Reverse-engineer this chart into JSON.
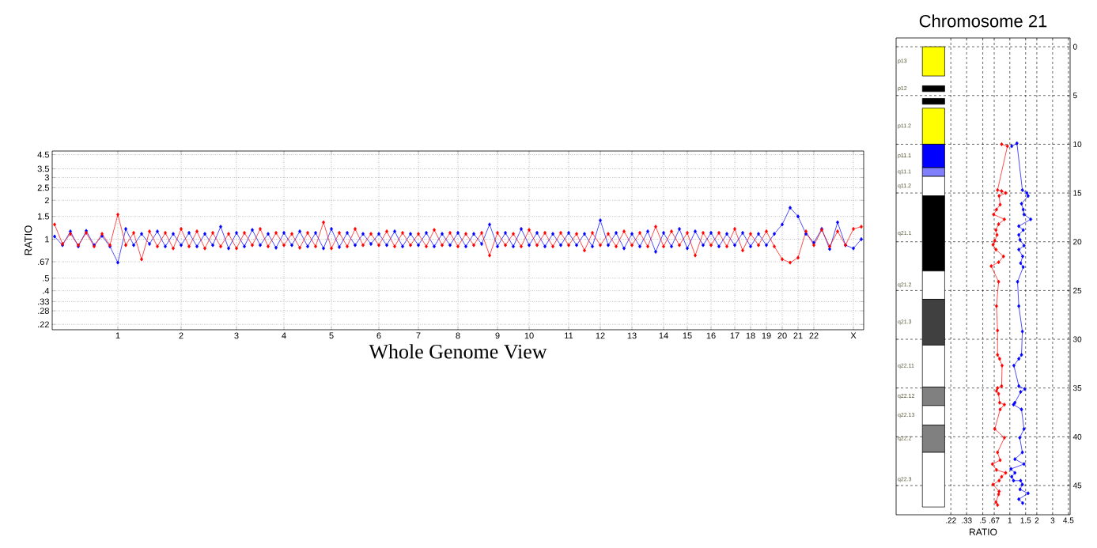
{
  "chart_data": [
    {
      "type": "line",
      "xlabel": "Whole Genome View",
      "ylabel": "RATIO",
      "log": "y",
      "grid": true,
      "marker": "diamond",
      "line_style": "solid",
      "ylim": [
        0.2,
        4.8
      ],
      "categories": [
        null,
        null,
        null,
        null,
        null,
        null,
        null,
        null,
        "1",
        null,
        null,
        null,
        null,
        null,
        null,
        null,
        "2",
        null,
        null,
        null,
        null,
        null,
        null,
        "3",
        null,
        null,
        null,
        null,
        null,
        "4",
        null,
        null,
        null,
        null,
        null,
        "5",
        null,
        null,
        null,
        null,
        null,
        "6",
        null,
        null,
        null,
        null,
        "7",
        null,
        null,
        null,
        null,
        "8",
        null,
        null,
        null,
        null,
        "9",
        null,
        null,
        null,
        "10",
        null,
        null,
        null,
        null,
        "11",
        null,
        null,
        null,
        "12",
        null,
        null,
        null,
        "13",
        null,
        null,
        null,
        "14",
        null,
        null,
        "15",
        null,
        null,
        "16",
        null,
        null,
        "17",
        null,
        "18",
        null,
        "19",
        null,
        "20",
        null,
        "21",
        null,
        "22",
        null,
        null,
        null,
        null,
        "X",
        null
      ],
      "yticks": [
        {
          "value": 0.22,
          "label": ".22"
        },
        {
          "value": 0.28,
          "label": ".28"
        },
        {
          "value": 0.33,
          "label": ".33"
        },
        {
          "value": 0.4,
          "label": ".4"
        },
        {
          "value": 0.5,
          "label": ".5"
        },
        {
          "value": 0.67,
          "label": ".67"
        },
        1,
        1.5,
        2,
        2.5,
        3,
        3.5,
        4.5
      ],
      "series": [
        {
          "color": "#0000ff",
          "values": [
            1.05,
            0.9,
            1.15,
            0.88,
            1.16,
            0.9,
            1.06,
            0.88,
            0.66,
            1.2,
            0.9,
            1.1,
            0.92,
            1.15,
            0.88,
            1.1,
            0.9,
            1.12,
            0.88,
            1.1,
            0.9,
            1.25,
            0.85,
            1.12,
            0.88,
            1.18,
            0.9,
            1.1,
            0.86,
            1.12,
            0.9,
            1.15,
            0.88,
            1.12,
            0.85,
            1.2,
            0.87,
            1.12,
            0.9,
            1.1,
            0.92,
            1.1,
            0.9,
            1.15,
            0.88,
            1.1,
            0.9,
            1.12,
            0.88,
            1.1,
            0.9,
            1.12,
            0.88,
            1.1,
            0.92,
            1.3,
            0.88,
            1.12,
            0.88,
            1.2,
            0.9,
            1.12,
            0.88,
            1.1,
            0.9,
            1.12,
            0.9,
            1.1,
            0.88,
            1.4,
            0.9,
            1.12,
            0.85,
            1.1,
            0.88,
            1.15,
            0.8,
            1.12,
            0.88,
            1.2,
            0.85,
            1.15,
            0.9,
            1.12,
            0.88,
            1.1,
            0.9,
            1.12,
            0.88,
            1.1,
            0.9,
            1.1,
            1.3,
            1.75,
            1.5,
            1.1,
            0.94,
            1.2,
            0.84,
            1.35,
            0.9,
            0.85,
            1.0
          ]
        },
        {
          "color": "#ff0000",
          "values": [
            1.3,
            0.92,
            1.1,
            0.9,
            1.12,
            0.88,
            1.1,
            0.9,
            1.55,
            0.9,
            1.12,
            0.7,
            1.15,
            0.88,
            1.12,
            0.85,
            1.2,
            0.88,
            1.15,
            0.85,
            1.12,
            0.88,
            1.1,
            0.85,
            1.12,
            0.9,
            1.2,
            0.88,
            1.12,
            0.9,
            1.1,
            0.86,
            1.12,
            0.88,
            1.35,
            0.85,
            1.12,
            0.88,
            1.2,
            0.9,
            1.1,
            0.9,
            1.15,
            0.88,
            1.12,
            0.9,
            1.1,
            0.88,
            1.18,
            0.9,
            1.12,
            0.88,
            1.1,
            0.9,
            1.12,
            0.75,
            1.12,
            0.9,
            1.1,
            0.88,
            1.18,
            0.9,
            1.12,
            0.88,
            1.12,
            0.9,
            1.1,
            0.82,
            1.12,
            0.9,
            1.1,
            0.88,
            1.15,
            0.9,
            1.12,
            0.88,
            1.25,
            0.88,
            1.15,
            0.9,
            1.12,
            0.75,
            1.12,
            0.9,
            1.12,
            0.88,
            1.2,
            0.82,
            1.1,
            0.9,
            1.15,
            0.88,
            0.7,
            0.66,
            0.72,
            1.15,
            0.9,
            1.18,
            0.88,
            1.15,
            0.9,
            1.2,
            1.25
          ]
        }
      ]
    },
    {
      "type": "line",
      "title": "Chromosome 21",
      "xlabel": "RATIO",
      "log": "x",
      "grid": true,
      "marker": "diamond",
      "line_style": "solid",
      "xlim": [
        0.054,
        4.7
      ],
      "ylim": [
        48,
        -0.9
      ],
      "xticks": [
        {
          "value": 0.22,
          "label": ".22"
        },
        {
          "value": 0.33,
          "label": ".33"
        },
        {
          "value": 0.5,
          "label": ".5"
        },
        {
          "value": 0.67,
          "label": ".67"
        },
        1,
        1.5,
        2,
        3,
        4.5
      ],
      "yticks": [
        0,
        5,
        10,
        15,
        20,
        25,
        30,
        35,
        40,
        45
      ],
      "bands": [
        {
          "axis": "y",
          "from": 0,
          "to": 3.0,
          "label": "p13",
          "color": "#ffff00"
        },
        {
          "axis": "y",
          "from": 4.0,
          "to": 4.6,
          "label": "p12",
          "color": "#000000"
        },
        {
          "axis": "y",
          "from": 5.3,
          "to": 5.9,
          "color": "#000000"
        },
        {
          "axis": "y",
          "from": 6.3,
          "to": 10.0,
          "label": "p11.2",
          "color": "#ffff00"
        },
        {
          "axis": "y",
          "from": 10.0,
          "to": 12.4,
          "label": "p11.1",
          "color": "#0000ff"
        },
        {
          "axis": "y",
          "from": 12.4,
          "to": 13.3,
          "label": "q11.1",
          "color": "#8080ff"
        },
        {
          "axis": "y",
          "from": 13.3,
          "to": 15.3,
          "label": "q11.2",
          "color": "#ffffff"
        },
        {
          "axis": "y",
          "from": 15.3,
          "to": 23.0,
          "label": "q21.1",
          "color": "#000000"
        },
        {
          "axis": "y",
          "from": 23.0,
          "to": 25.9,
          "label": "q21.2",
          "color": "#ffffff"
        },
        {
          "axis": "y",
          "from": 25.9,
          "to": 30.6,
          "label": "q21.3",
          "color": "#404040"
        },
        {
          "axis": "y",
          "from": 30.6,
          "to": 34.9,
          "label": "q22.11",
          "color": "#ffffff"
        },
        {
          "axis": "y",
          "from": 34.9,
          "to": 36.8,
          "label": "q22.12",
          "color": "#808080"
        },
        {
          "axis": "y",
          "from": 36.8,
          "to": 38.8,
          "label": "q22.13",
          "color": "#ffffff"
        },
        {
          "axis": "y",
          "from": 38.8,
          "to": 41.6,
          "label": "q22.2",
          "color": "#808080"
        },
        {
          "axis": "y",
          "from": 41.6,
          "to": 47.2,
          "label": "q22.3",
          "color": "#ffffff"
        }
      ],
      "series": [
        {
          "color": "#ff0000",
          "x": [
            0.81,
            0.94,
            0.73,
            0.81,
            0.9,
            0.76,
            0.78,
            0.71,
            0.66,
            0.87,
            0.75,
            0.7,
            0.72,
            0.68,
            0.65,
            0.7,
            0.85,
            0.75,
            0.62,
            0.75,
            0.71,
            0.73,
            0.73,
            0.77,
            0.82,
            0.81,
            0.73,
            0.71,
            0.75,
            0.77,
            0.87,
            0.78,
            0.68,
            0.87,
            0.73,
            0.78,
            0.64,
            0.71,
            0.9,
            0.81,
            0.76,
            0.65,
            0.76,
            0.75,
            0.7,
            0.73
          ],
          "values": [
            10.0,
            10.2,
            14.7,
            14.8,
            15.0,
            15.3,
            16.2,
            16.7,
            17.2,
            17.7,
            18.2,
            18.8,
            19.3,
            19.9,
            20.3,
            20.8,
            21.5,
            22.1,
            22.5,
            24.1,
            26.6,
            29.1,
            31.6,
            32.0,
            32.7,
            34.8,
            35.0,
            35.3,
            35.6,
            36.5,
            36.7,
            37.2,
            39.2,
            40.1,
            41.6,
            42.4,
            42.8,
            43.4,
            43.7,
            44.1,
            44.5,
            44.9,
            45.6,
            45.9,
            46.7,
            47.0
          ]
        },
        {
          "color": "#0000ff",
          "x": [
            1.05,
            1.2,
            1.38,
            1.55,
            1.6,
            1.35,
            1.41,
            1.44,
            1.71,
            1.26,
            1.41,
            1.26,
            1.3,
            1.44,
            1.26,
            1.39,
            1.32,
            1.41,
            1.22,
            1.26,
            1.38,
            1.35,
            1.26,
            1.11,
            1.26,
            1.47,
            1.32,
            1.14,
            1.1,
            1.35,
            1.44,
            1.29,
            1.38,
            1.14,
            1.44,
            1.03,
            1.14,
            1.05,
            1.1,
            1.32,
            1.38,
            1.3,
            1.6,
            1.26,
            1.39
          ],
          "values": [
            10.2,
            9.9,
            14.7,
            15.0,
            15.3,
            16.1,
            16.7,
            17.2,
            17.7,
            18.4,
            18.8,
            19.3,
            19.8,
            20.4,
            20.8,
            21.5,
            22.2,
            22.6,
            24.1,
            26.6,
            29.2,
            31.6,
            32.0,
            32.7,
            34.8,
            35.1,
            35.4,
            36.5,
            36.7,
            37.2,
            39.2,
            40.1,
            41.6,
            42.3,
            42.8,
            43.3,
            43.7,
            44.1,
            44.5,
            44.5,
            44.9,
            45.4,
            45.8,
            46.4,
            46.8
          ]
        }
      ]
    }
  ]
}
